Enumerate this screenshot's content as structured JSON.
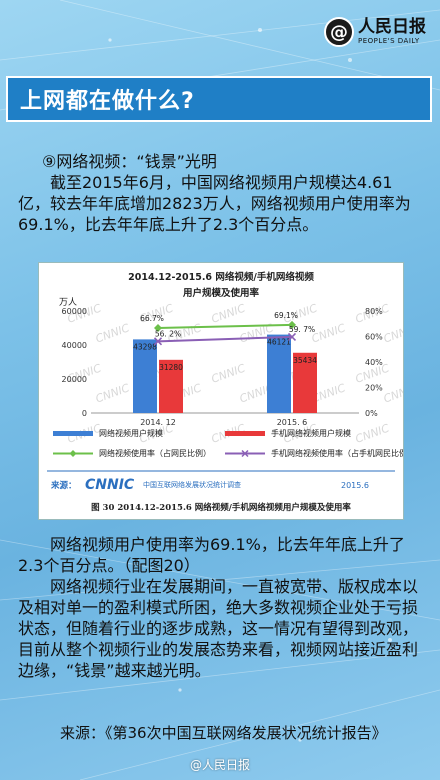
{
  "brand": {
    "name_cn": "人民日报",
    "name_en": "PEOPLE'S DAILY",
    "mark": "@"
  },
  "title": "上网都在做什么?",
  "section_heading": "⑨网络视频：“钱景”光明",
  "paragraph1": "截至2015年6月，中国网络视频用户规模达4.61亿，较去年年底增加2823万人，网络视频用户使用率为69.1%，比去年年底上升了2.3个百分点。",
  "figure_caption": "图 30 2014.12-2015.6 网络视频/手机网络视频用户规模及使用率",
  "paragraph2": "网络视频用户使用率为69.1%，比去年年底上升了2.3个百分点。（配图20）",
  "paragraph3": "网络视频行业在发展期间，一直被宽带、版权成本以及相对单一的盈利模式所困，绝大多数视频企业处于亏损状态，但随着行业的逐步成熟，这一情况有望得到改观，目前从整个视频行业的发展态势来看，视频网站接近盈利边缘，“钱景”越来越光明。",
  "source": "来源：《第36次中国互联网络发展状况统计报告》",
  "footer": "@人民日报",
  "chart_data": {
    "type": "bar",
    "title": "2014.12-2015.6  网络视频/手机网络视频",
    "subtitle": "用户规模及使用率",
    "ylabel": "万人",
    "categories": [
      "2014. 12",
      "2015. 6"
    ],
    "ylim": [
      0,
      60000
    ],
    "y_ticks": [
      "0",
      "20000",
      "40000",
      "60000"
    ],
    "y2lim": [
      0,
      80
    ],
    "y2_ticks": [
      "0%",
      "20%",
      "40%",
      "60%",
      "80%"
    ],
    "series": [
      {
        "name": "网络视频用户规模",
        "kind": "bar",
        "color": "#3d7fd4",
        "values": [
          43298,
          46121
        ],
        "labels": [
          "43298",
          "46121"
        ]
      },
      {
        "name": "手机网络视频用户规模",
        "kind": "bar",
        "color": "#e8393a",
        "values": [
          31280,
          35434
        ],
        "labels": [
          "31280",
          "35434"
        ]
      },
      {
        "name": "网络视频使用率（占网民比例）",
        "kind": "line",
        "color": "#6cc04a",
        "values": [
          66.7,
          69.1
        ],
        "labels": [
          "66.7%",
          "69.1%"
        ]
      },
      {
        "name": "手机网络视频使用率（占手机网民比例）",
        "kind": "line",
        "color": "#8a5fb5",
        "values": [
          56.2,
          59.7
        ],
        "labels": [
          "56. 2%",
          "59. 7%"
        ]
      }
    ],
    "source_label": "来源：",
    "source_org": "CNNIC",
    "source_org_cn": "中国互联网络发展状况统计调查",
    "source_date": "2015.6",
    "watermark": "CNNIC",
    "legend_position": "bottom"
  }
}
